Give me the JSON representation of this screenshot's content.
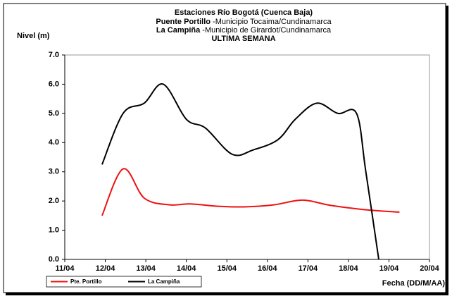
{
  "chart_data": {
    "type": "line",
    "title": "Estaciones Río Bogotá (Cuenca Baja)",
    "subtitle": [
      {
        "bold": "Puente Portillo",
        "text": " -Municipio Tocaima/Cundinamarca"
      },
      {
        "bold": "La Campiña",
        "text": " -Municipio de Girardot/Cundinamarca"
      },
      {
        "bold": "ULTIMA SEMANA"
      }
    ],
    "ylabel": "Nivel (m)",
    "xlabel": "Fecha (DD/M/AA)",
    "xlim": [
      11,
      20
    ],
    "xticks": [
      {
        "value": 11,
        "label": "11/04"
      },
      {
        "value": 12,
        "label": "12/04"
      },
      {
        "value": 13,
        "label": "13/04"
      },
      {
        "value": 14,
        "label": "14/04"
      },
      {
        "value": 15,
        "label": "15/04"
      },
      {
        "value": 16,
        "label": "16/04"
      },
      {
        "value": 17,
        "label": "17/04"
      },
      {
        "value": 18,
        "label": "18/04"
      },
      {
        "value": 19,
        "label": "19/04"
      },
      {
        "value": 20,
        "label": "20/04"
      }
    ],
    "ylim": [
      0,
      7
    ],
    "yticks": [
      {
        "value": 0,
        "label": "0.0"
      },
      {
        "value": 1,
        "label": "1.0"
      },
      {
        "value": 2,
        "label": "2.0"
      },
      {
        "value": 3,
        "label": "3.0"
      },
      {
        "value": 4,
        "label": "4.0"
      },
      {
        "value": 5,
        "label": "5.0"
      },
      {
        "value": 6,
        "label": "6.0"
      },
      {
        "value": 7,
        "label": "7.0"
      }
    ],
    "series": [
      {
        "name": "Pte. Portillo",
        "color": "#ee1111",
        "x": [
          11.92,
          12.44,
          12.96,
          13.57,
          14.09,
          14.78,
          15.48,
          16.17,
          16.87,
          17.56,
          18.43,
          19.26
        ],
        "values": [
          1.5,
          3.1,
          2.1,
          1.87,
          1.9,
          1.82,
          1.8,
          1.87,
          2.03,
          1.85,
          1.7,
          1.62
        ]
      },
      {
        "name": "La Campiña",
        "color": "#000000",
        "x": [
          11.92,
          12.44,
          12.96,
          13.43,
          14.0,
          14.47,
          15.13,
          15.65,
          16.26,
          16.69,
          17.22,
          17.74,
          18.2,
          18.43,
          18.78
        ],
        "values": [
          3.25,
          5.0,
          5.35,
          6.0,
          4.8,
          4.5,
          3.6,
          3.75,
          4.1,
          4.8,
          5.35,
          5.0,
          5.0,
          3.0,
          -0.3
        ]
      }
    ]
  }
}
